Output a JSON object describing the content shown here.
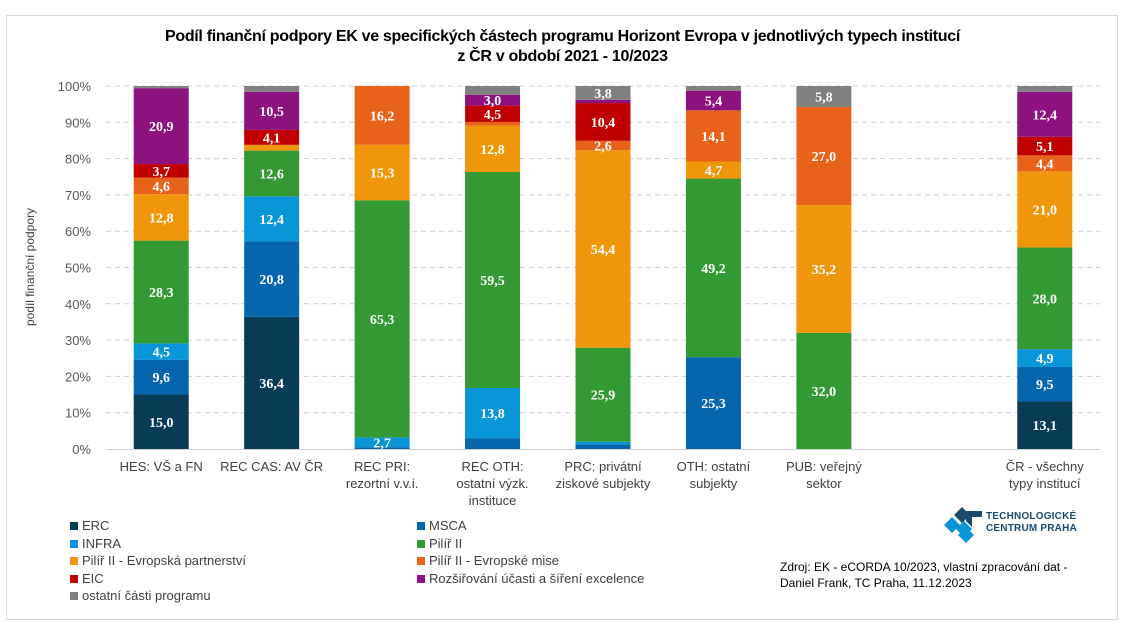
{
  "chart_data": {
    "type": "bar",
    "stacked": true,
    "title_lines": [
      "Podíl finanční podpory EK ve specifických částech programu Horizont Evropa v jednotlivých typech institucí",
      "z ČR v období 2021 - 10/2023"
    ],
    "xlabel": "",
    "ylabel": "podíl finanční podpory",
    "ylim": [
      0,
      100
    ],
    "y_ticks": [
      "0%",
      "10%",
      "20%",
      "30%",
      "40%",
      "50%",
      "60%",
      "70%",
      "80%",
      "90%",
      "100%"
    ],
    "grid": true,
    "legend_position": "bottom-left",
    "categories": [
      [
        "HES: VŠ a FN"
      ],
      [
        "REC CAS: AV ČR"
      ],
      [
        "REC PRI:",
        "rezortní v.v.i."
      ],
      [
        "REC OTH:",
        "ostatní výzk.",
        "instituce"
      ],
      [
        "PRC: privátní",
        "ziskové subjekty"
      ],
      [
        "OTH: ostatní",
        "subjekty"
      ],
      [
        "PUB: veřejný",
        "sektor"
      ],
      null,
      [
        "ČR - všechny",
        "typy institucí"
      ]
    ],
    "series": [
      {
        "name": "ERC",
        "color": "#073b56",
        "values": [
          15.0,
          36.4,
          0,
          0,
          0,
          0,
          0,
          null,
          13.1
        ],
        "labels": [
          true,
          true,
          false,
          false,
          false,
          false,
          false,
          null,
          true
        ]
      },
      {
        "name": "MSCA",
        "color": "#0565ad",
        "values": [
          9.6,
          20.8,
          0.5,
          3.0,
          1.3,
          25.3,
          0,
          null,
          9.5
        ],
        "labels": [
          true,
          true,
          false,
          false,
          false,
          true,
          false,
          null,
          true
        ]
      },
      {
        "name": "INFRA",
        "color": "#0996d9",
        "values": [
          4.5,
          12.4,
          2.7,
          13.8,
          0.7,
          0,
          0,
          null,
          4.9
        ],
        "labels": [
          true,
          true,
          true,
          true,
          false,
          false,
          false,
          null,
          true
        ]
      },
      {
        "name": "Pilíř II",
        "color": "#339933",
        "values": [
          28.3,
          12.6,
          65.3,
          59.5,
          25.9,
          49.2,
          32.0,
          null,
          28.0
        ],
        "labels": [
          true,
          true,
          true,
          true,
          true,
          true,
          true,
          null,
          true
        ]
      },
      {
        "name": "Pilíř II - Evropská partnerství",
        "color": "#f0960a",
        "values": [
          12.8,
          1.6,
          15.3,
          12.8,
          54.4,
          4.7,
          35.2,
          null,
          21.0
        ],
        "labels": [
          true,
          false,
          true,
          true,
          true,
          true,
          true,
          null,
          true
        ]
      },
      {
        "name": "Pilíř II - Evropské mise",
        "color": "#e8621a",
        "values": [
          4.6,
          0,
          16.2,
          1.0,
          2.6,
          14.1,
          27.0,
          null,
          4.4
        ],
        "labels": [
          true,
          false,
          true,
          false,
          true,
          true,
          true,
          null,
          true
        ]
      },
      {
        "name": "EIC",
        "color": "#c00000",
        "values": [
          3.7,
          4.1,
          0,
          4.5,
          10.4,
          0,
          0,
          null,
          5.1
        ],
        "labels": [
          true,
          true,
          false,
          true,
          true,
          false,
          false,
          null,
          true
        ]
      },
      {
        "name": "Rozšiřování účasti a šíření excelence",
        "color": "#8e1180",
        "values": [
          20.9,
          10.5,
          0,
          3.0,
          0.9,
          5.4,
          0,
          null,
          12.4
        ],
        "labels": [
          true,
          true,
          false,
          true,
          false,
          true,
          false,
          null,
          true
        ]
      },
      {
        "name": "ostatní části programu",
        "color": "#808080",
        "values": [
          0.6,
          1.6,
          0,
          2.4,
          3.8,
          1.3,
          5.8,
          null,
          1.6
        ],
        "labels": [
          false,
          false,
          false,
          false,
          true,
          false,
          true,
          null,
          false
        ]
      }
    ]
  },
  "legend": {
    "items": [
      {
        "label": "ERC",
        "color": "#073b56"
      },
      {
        "label": "MSCA",
        "color": "#0565ad"
      },
      {
        "label": "INFRA",
        "color": "#0996d9"
      },
      {
        "label": "Pilíř II",
        "color": "#339933"
      },
      {
        "label": "Pilíř II - Evropská partnerství",
        "color": "#f0960a"
      },
      {
        "label": "Pilíř II - Evropské mise",
        "color": "#e8621a"
      },
      {
        "label": "EIC",
        "color": "#c00000"
      },
      {
        "label": "Rozšiřování účasti a šíření excelence",
        "color": "#8e1180"
      },
      {
        "label": "ostatní části programu",
        "color": "#808080"
      }
    ]
  },
  "source": {
    "line1": "Zdroj: EK - eCORDA 10/2023, vlastní zpracování dat -",
    "line2": "Daniel Frank, TC Praha, 11.12.2023"
  },
  "logo": {
    "line1": "TECHNOLOGICKÉ",
    "line2": "CENTRUM PRAHA"
  }
}
